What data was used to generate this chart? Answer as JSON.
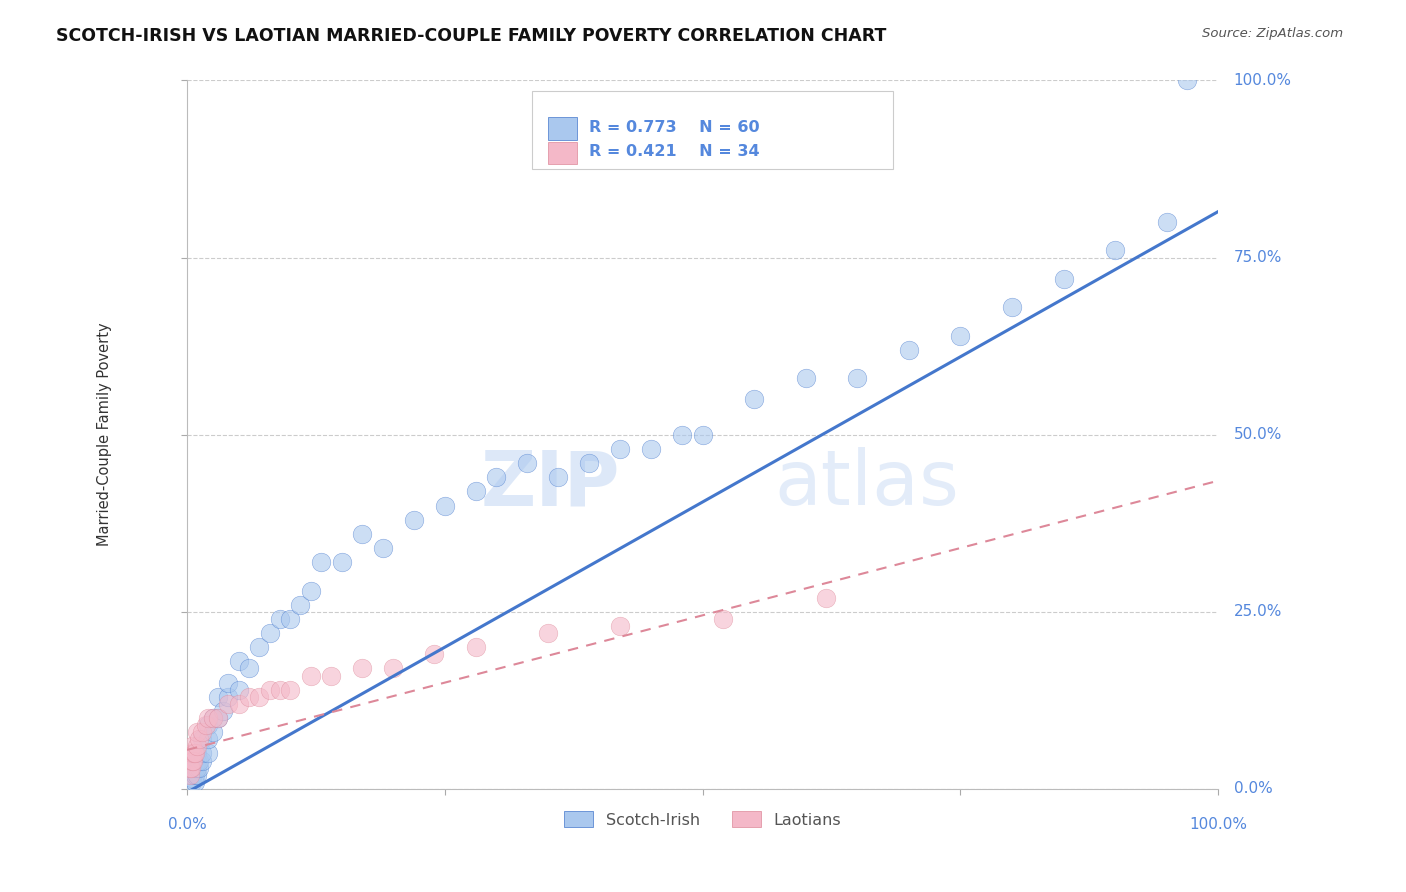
{
  "title": "SCOTCH-IRISH VS LAOTIAN MARRIED-COUPLE FAMILY POVERTY CORRELATION CHART",
  "source": "Source: ZipAtlas.com",
  "ylabel": "Married-Couple Family Poverty",
  "watermark_left": "ZIP",
  "watermark_right": "atlas",
  "legend_entries": [
    {
      "label": "Scotch-Irish",
      "R": "R = 0.773",
      "N": "N = 60",
      "scatter_color": "#aac8ee",
      "line_color": "#4477cc"
    },
    {
      "label": "Laotians",
      "R": "R = 0.421",
      "N": "N = 34",
      "scatter_color": "#f4b8c8",
      "line_color": "#dd8899"
    }
  ],
  "ytick_labels": [
    "0.0%",
    "25.0%",
    "50.0%",
    "75.0%",
    "100.0%"
  ],
  "ytick_values": [
    0,
    25,
    50,
    75,
    100
  ],
  "xtick_labels": [
    "0.0%",
    "25.0%",
    "50.0%",
    "75.0%",
    "100.0%"
  ],
  "xtick_values": [
    0,
    25,
    50,
    75,
    100
  ],
  "xlim": [
    0,
    100
  ],
  "ylim": [
    0,
    100
  ],
  "si_x": [
    0.5,
    0.5,
    0.5,
    0.5,
    0.8,
    0.8,
    0.8,
    1,
    1,
    1,
    1,
    1.2,
    1.2,
    1.5,
    1.5,
    1.5,
    2,
    2,
    2,
    2.5,
    2.5,
    3,
    3,
    3.5,
    4,
    4,
    5,
    5,
    6,
    7,
    8,
    9,
    10,
    11,
    12,
    13,
    15,
    17,
    19,
    22,
    25,
    28,
    30,
    33,
    36,
    39,
    42,
    45,
    48,
    50,
    55,
    60,
    65,
    70,
    75,
    80,
    85,
    90,
    95,
    97
  ],
  "si_y": [
    1,
    1.5,
    2,
    2.5,
    1,
    2,
    3,
    2,
    3,
    4,
    5,
    3,
    4,
    4,
    5,
    7,
    5,
    7,
    9,
    8,
    10,
    10,
    13,
    11,
    13,
    15,
    14,
    18,
    17,
    20,
    22,
    24,
    24,
    26,
    28,
    32,
    32,
    36,
    34,
    38,
    40,
    42,
    44,
    46,
    44,
    46,
    48,
    48,
    50,
    50,
    55,
    58,
    58,
    62,
    64,
    68,
    72,
    76,
    80,
    100
  ],
  "la_x": [
    0.3,
    0.3,
    0.4,
    0.5,
    0.5,
    0.5,
    0.6,
    0.7,
    0.8,
    1,
    1,
    1.2,
    1.5,
    1.8,
    2,
    2.5,
    3,
    4,
    5,
    6,
    7,
    8,
    9,
    10,
    12,
    14,
    17,
    20,
    24,
    28,
    35,
    42,
    52,
    62
  ],
  "la_y": [
    2,
    3,
    3,
    4,
    5,
    6,
    4,
    5,
    5,
    6,
    8,
    7,
    8,
    9,
    10,
    10,
    10,
    12,
    12,
    13,
    13,
    14,
    14,
    14,
    16,
    16,
    17,
    17,
    19,
    20,
    22,
    23,
    24,
    27
  ],
  "blue_line": {
    "slope": 0.82,
    "intercept": -0.5
  },
  "pink_line": {
    "slope": 0.38,
    "intercept": 5.5
  },
  "axis_label_color": "#5588dd",
  "grid_color": "#cccccc",
  "background_color": "#ffffff",
  "title_color": "#111111",
  "ylabel_color": "#333333"
}
